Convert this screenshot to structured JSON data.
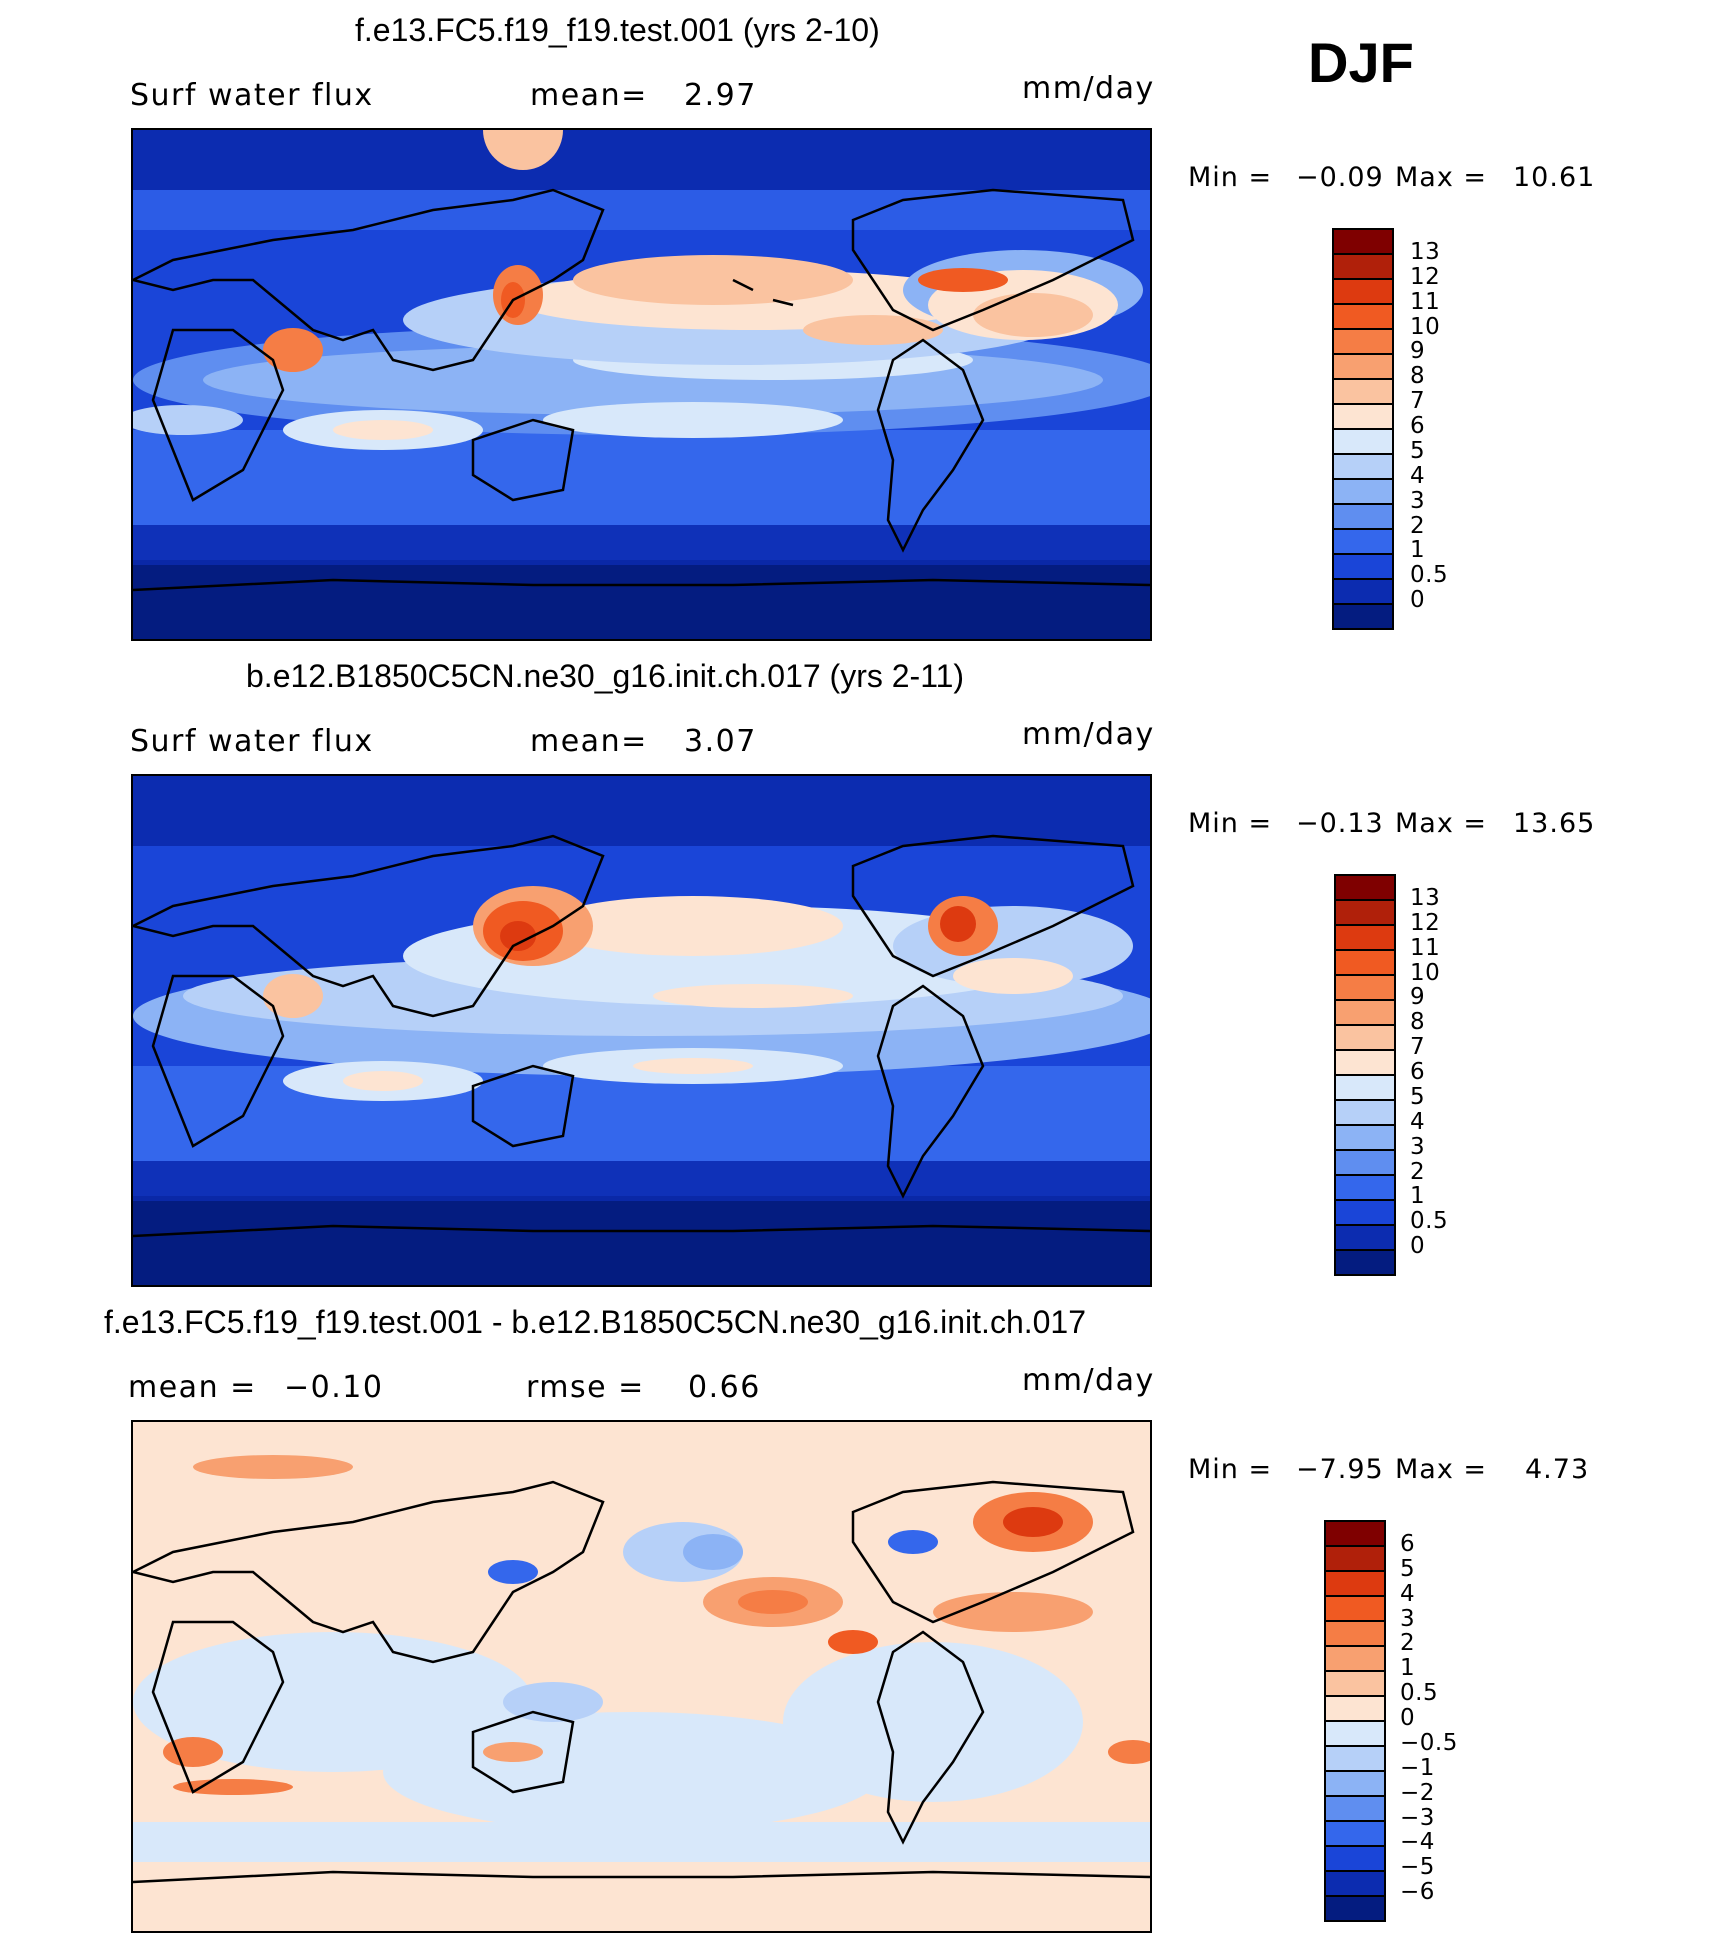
{
  "season": "DJF",
  "panels": [
    {
      "title": "f.e13.FC5.f19_f19.test.001 (yrs 2-10)",
      "variable": "Surf water flux",
      "mean_label": "mean=",
      "mean_value": "2.97",
      "units": "mm/day",
      "min_label": "Min =",
      "min_value": "−0.09",
      "max_label": "Max =",
      "max_value": "10.61",
      "colorbar_labels": [
        "13",
        "12",
        "11",
        "10",
        "9",
        "8",
        "7",
        "6",
        "5",
        "4",
        "3",
        "2",
        "1",
        "0.5",
        "0"
      ],
      "colorbar_colors": [
        "#7f0000",
        "#b0200a",
        "#dd3a10",
        "#f05a22",
        "#f57d45",
        "#f8a070",
        "#fac3a0",
        "#fde4d2",
        "#d8e8fa",
        "#b6d0f8",
        "#8cb3f5",
        "#5f8ef0",
        "#3467ec",
        "#1a45d8",
        "#0c2cb0",
        "#041c80"
      ]
    },
    {
      "title": "b.e12.B1850C5CN.ne30_g16.init.ch.017 (yrs 2-11)",
      "variable": "Surf water flux",
      "mean_label": "mean=",
      "mean_value": "3.07",
      "units": "mm/day",
      "min_label": "Min =",
      "min_value": "−0.13",
      "max_label": "Max =",
      "max_value": "13.65",
      "colorbar_labels": [
        "13",
        "12",
        "11",
        "10",
        "9",
        "8",
        "7",
        "6",
        "5",
        "4",
        "3",
        "2",
        "1",
        "0.5",
        "0"
      ],
      "colorbar_colors": [
        "#7f0000",
        "#b0200a",
        "#dd3a10",
        "#f05a22",
        "#f57d45",
        "#f8a070",
        "#fac3a0",
        "#fde4d2",
        "#d8e8fa",
        "#b6d0f8",
        "#8cb3f5",
        "#5f8ef0",
        "#3467ec",
        "#1a45d8",
        "#0c2cb0",
        "#041c80"
      ]
    },
    {
      "title": "f.e13.FC5.f19_f19.test.001 - b.e12.B1850C5CN.ne30_g16.init.ch.017",
      "variable": "mean =",
      "mean_label": "rmse =",
      "mean_value": "0.66",
      "diff_mean_value": "−0.10",
      "units": "mm/day",
      "min_label": "Min =",
      "min_value": "−7.95",
      "max_label": "Max =",
      "max_value": "4.73",
      "colorbar_labels": [
        "6",
        "5",
        "4",
        "3",
        "2",
        "1",
        "0.5",
        "0",
        "−0.5",
        "−1",
        "−2",
        "−3",
        "−4",
        "−5",
        "−6"
      ],
      "colorbar_colors": [
        "#7f0000",
        "#b0200a",
        "#dd3a10",
        "#f05a22",
        "#f57d45",
        "#f8a070",
        "#fac3a0",
        "#fde4d2",
        "#d8e8fa",
        "#b6d0f8",
        "#8cb3f5",
        "#5f8ef0",
        "#3467ec",
        "#1a45d8",
        "#0c2cb0",
        "#041c80"
      ]
    }
  ]
}
